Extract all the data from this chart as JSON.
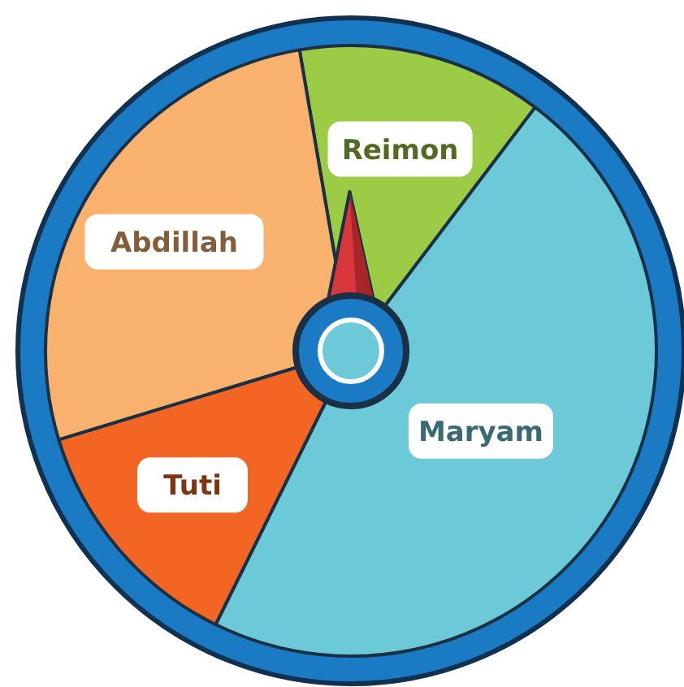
{
  "chart_data": {
    "type": "pie",
    "categories": [
      "Reimon",
      "Maryam",
      "Tuti",
      "Abdillah"
    ],
    "values": [
      13,
      47,
      13,
      27
    ],
    "colors": [
      "#9ccb45",
      "#6ccad8",
      "#f26522",
      "#f8b26e"
    ],
    "needle": "Reimon"
  }
}
